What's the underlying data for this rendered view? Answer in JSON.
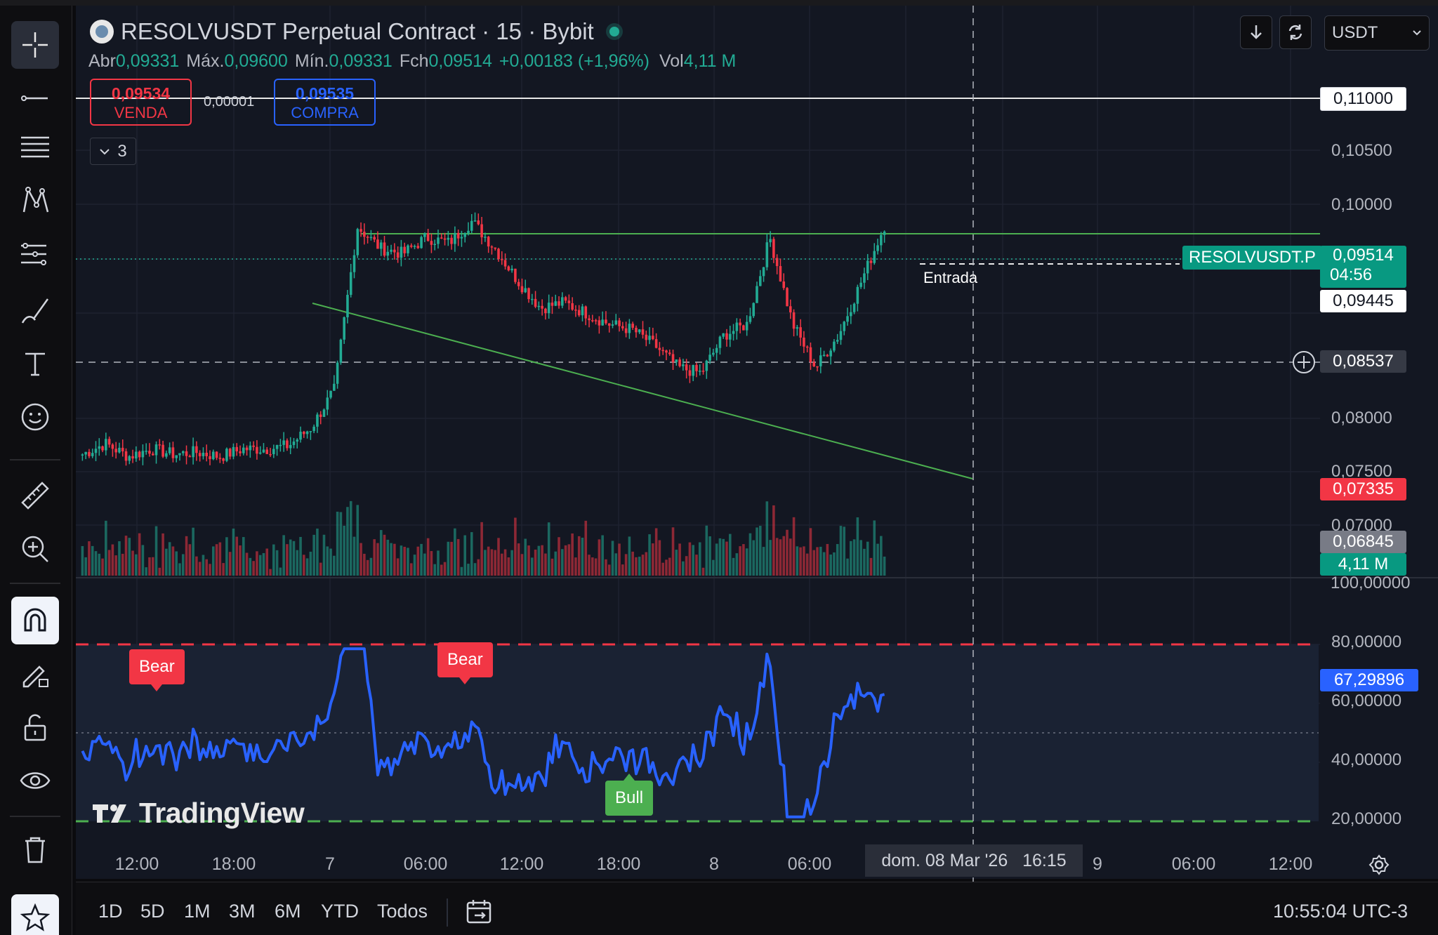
{
  "symbol": {
    "title": "RESOLVUSDT Perpetual Contract · 15 · Bybit",
    "ticker_tag": "RESOLVUSDT.P"
  },
  "ohlc": {
    "open_label": "Abr",
    "open": "0,09331",
    "high_label": "Máx.",
    "high": "0,09600",
    "low_label": "Mín.",
    "low": "0,09331",
    "close_label": "Fch",
    "close": "0,09514",
    "change": "+0,00183 (+1,96%)",
    "vol_label": "Vol",
    "vol": "4,11 M"
  },
  "trade": {
    "sell_price": "0,09534",
    "sell_label": "VENDA",
    "spread": "0,00001",
    "buy_price": "0,09535",
    "buy_label": "COMPRA"
  },
  "indicators_toggle": "3",
  "currency": "USDT",
  "price_scale": {
    "labels": [
      "0,10500",
      "0,10000",
      "0,08000",
      "0,07500",
      "0,07000"
    ],
    "tags": {
      "alert_line": "0,11000",
      "last_price": "0,09514",
      "countdown": "04:56",
      "entry": "0,09445",
      "crosshair": "0,08537",
      "red_level": "0,07335",
      "gray_level": "0,06845",
      "volume": "4,11 M"
    }
  },
  "annotations": {
    "entry_label": "Entrada"
  },
  "oscillator": {
    "scale": [
      "100,00000",
      "80,00000",
      "60,00000",
      "40,00000",
      "20,00000"
    ],
    "current": "67,29896",
    "signals": [
      "Bear",
      "Bear",
      "Bull"
    ],
    "colors": {
      "line": "#2962ff",
      "upper": "#f23645",
      "lower": "#4caf50"
    }
  },
  "watermark": "TradingView",
  "time_axis": {
    "labels": [
      "12:00",
      "18:00",
      "7",
      "06:00",
      "12:00",
      "18:00",
      "8",
      "06:00",
      "9",
      "06:00",
      "12:00"
    ],
    "crosshair_date": "dom. 08 Mar '26",
    "crosshair_time": "16:15"
  },
  "ranges": [
    "1D",
    "5D",
    "1M",
    "3M",
    "6M",
    "YTD",
    "Todos"
  ],
  "clock": "10:55:04 UTC-3",
  "colors": {
    "up": "#22ab94",
    "down": "#f23645",
    "background": "#131722"
  },
  "chart_data": {
    "type": "candlestick",
    "interval": "15",
    "series": [
      {
        "name": "close (approx.)",
        "values": [
          0.074,
          0.075,
          0.0738,
          0.0745,
          0.074,
          0.0742,
          0.0738,
          0.0745,
          0.0745,
          0.0748,
          0.0765,
          0.08,
          0.095,
          0.093,
          0.0925,
          0.094,
          0.0935,
          0.0955,
          0.093,
          0.09,
          0.0875,
          0.088,
          0.087,
          0.086,
          0.0855,
          0.084,
          0.082,
          0.0815,
          0.085,
          0.086,
          0.094,
          0.086,
          0.082,
          0.085,
          0.09,
          0.0951
        ]
      }
    ],
    "ylim": [
      0.068,
      0.112
    ]
  }
}
